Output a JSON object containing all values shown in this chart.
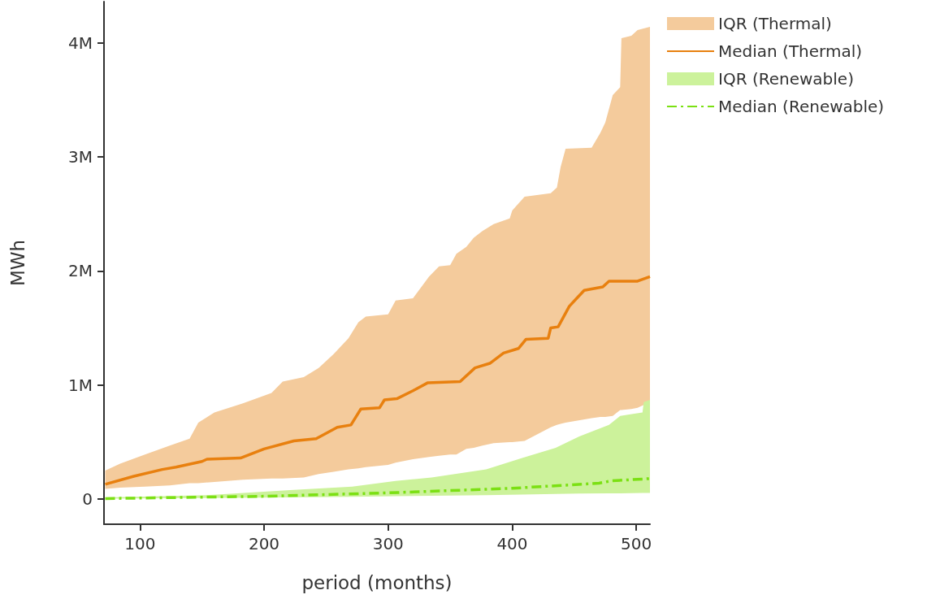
{
  "chart_data": {
    "type": "line",
    "xlabel": "period (months)",
    "ylabel": "MWh",
    "xlim": [
      71,
      511
    ],
    "ylim": [
      -220000,
      4360000
    ],
    "xticks": [
      100,
      200,
      300,
      400,
      500
    ],
    "yticks": [
      {
        "value": 0,
        "label": "0"
      },
      {
        "value": 1000000,
        "label": "1M"
      },
      {
        "value": 2000000,
        "label": "2M"
      },
      {
        "value": 3000000,
        "label": "3M"
      },
      {
        "value": 4000000,
        "label": "4M"
      }
    ],
    "grid": false,
    "legend": "top right",
    "marker": "none",
    "series": [
      {
        "type": "area",
        "name": "IQR (Thermal)",
        "color": "#f4cb9c",
        "x": [
          72,
          84,
          104,
          124,
          140,
          147,
          160,
          183,
          206,
          215,
          232,
          244,
          256,
          268,
          276,
          282,
          300,
          306,
          320,
          333,
          341,
          350,
          355,
          363,
          369,
          376,
          385,
          398,
          400,
          410,
          431,
          436,
          439,
          443,
          464,
          471,
          475,
          481,
          487,
          488,
          496,
          501,
          511
        ],
        "lower": [
          90000,
          100000,
          110000,
          120000,
          140000,
          140000,
          150000,
          170000,
          180000,
          180000,
          190000,
          220000,
          240000,
          260000,
          270000,
          280000,
          300000,
          320000,
          350000,
          370000,
          380000,
          390000,
          390000,
          440000,
          450000,
          470000,
          490000,
          500000,
          500000,
          510000,
          630000,
          650000,
          660000,
          670000,
          710000,
          720000,
          720000,
          730000,
          780000,
          780000,
          790000,
          800000,
          850000
        ],
        "values": [
          null,
          null,
          null,
          null,
          null,
          null,
          null,
          null,
          null,
          null,
          null,
          null,
          null,
          null,
          null,
          null,
          null,
          null,
          null,
          null,
          null,
          null,
          null,
          null,
          null,
          null,
          null,
          null,
          null,
          null,
          null,
          null,
          null,
          null,
          null,
          null,
          null,
          null,
          null,
          null,
          null,
          null,
          null
        ],
        "upper": [
          250000,
          310000,
          390000,
          470000,
          530000,
          670000,
          760000,
          840000,
          930000,
          1030000,
          1070000,
          1150000,
          1270000,
          1410000,
          1550000,
          1600000,
          1620000,
          1740000,
          1760000,
          1950000,
          2040000,
          2050000,
          2150000,
          2210000,
          2290000,
          2350000,
          2410000,
          2460000,
          2530000,
          2650000,
          2680000,
          2730000,
          2910000,
          3070000,
          3080000,
          3210000,
          3300000,
          3540000,
          3610000,
          4040000,
          4060000,
          4110000,
          4140000
        ]
      },
      {
        "type": "line",
        "name": "Median (Thermal)",
        "color": "#e8800f",
        "line_style": "solid",
        "x": [
          72,
          95,
          118,
          129,
          150,
          154,
          181,
          200,
          224,
          242,
          259,
          270,
          278,
          293,
          297,
          307,
          320,
          332,
          358,
          370,
          382,
          393,
          405,
          411,
          429,
          431,
          437,
          446,
          452,
          458,
          473,
          478,
          501,
          511
        ],
        "values": [
          130000,
          200000,
          260000,
          280000,
          330000,
          350000,
          360000,
          440000,
          510000,
          530000,
          630000,
          650000,
          790000,
          800000,
          870000,
          880000,
          950000,
          1020000,
          1030000,
          1150000,
          1190000,
          1280000,
          1320000,
          1400000,
          1410000,
          1500000,
          1510000,
          1690000,
          1760000,
          1830000,
          1860000,
          1910000,
          1910000,
          1950000
        ]
      },
      {
        "type": "area",
        "name": "IQR (Renewable)",
        "color": "#ccf29b",
        "x": [
          72,
          154,
          221,
          271,
          306,
          335,
          379,
          408,
          435,
          454,
          478,
          487,
          505,
          506,
          511
        ],
        "lower": [
          5000,
          10000,
          15000,
          20000,
          25000,
          30000,
          35000,
          40000,
          45000,
          48000,
          50000,
          50000,
          55000,
          55000,
          55000
        ],
        "values": [
          null,
          null,
          null,
          null,
          null,
          null,
          null,
          null,
          null,
          null,
          null,
          null,
          null,
          null,
          null
        ],
        "upper": [
          15000,
          35000,
          80000,
          110000,
          160000,
          190000,
          260000,
          360000,
          450000,
          550000,
          650000,
          730000,
          760000,
          850000,
          870000
        ]
      },
      {
        "type": "line",
        "name": "Median (Renewable)",
        "color": "#7be013",
        "line_style": "dashdot",
        "x": [
          72,
          200,
          300,
          400,
          470,
          480,
          511
        ],
        "values": [
          5000,
          25000,
          55000,
          95000,
          140000,
          160000,
          180000
        ]
      }
    ]
  }
}
